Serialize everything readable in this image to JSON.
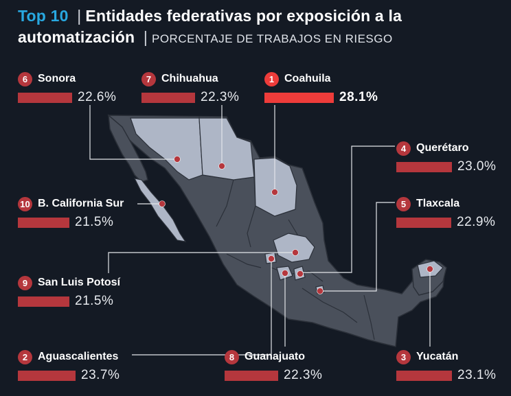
{
  "header": {
    "top_label": "Top 10",
    "separator": "|",
    "title": "Entidades federativas por exposición a la automatización",
    "subtitle": "PORCENTAJE DE TRABAJOS EN RIESGO"
  },
  "colors": {
    "accent_blue": "#28a8e0",
    "bar_red": "#b5373d",
    "highlight_red": "#ee3c3a",
    "background": "#141a24",
    "map_dark": "#4a505b",
    "map_highlight": "#aeb6c6"
  },
  "chart_data": {
    "type": "bar",
    "title": "Entidades federativas por exposición a la automatización",
    "subtitle": "PORCENTAJE DE TRABAJOS EN RIESGO",
    "unit": "%",
    "entries": [
      {
        "rank": "1",
        "name": "Coahuila",
        "value": 28.1,
        "label": "28.1%"
      },
      {
        "rank": "2",
        "name": "Aguascalientes",
        "value": 23.7,
        "label": "23.7%"
      },
      {
        "rank": "3",
        "name": "Yucatán",
        "value": 23.1,
        "label": "23.1%"
      },
      {
        "rank": "4",
        "name": "Querétaro",
        "value": 23.0,
        "label": "23.0%"
      },
      {
        "rank": "5",
        "name": "Tlaxcala",
        "value": 22.9,
        "label": "22.9%"
      },
      {
        "rank": "6",
        "name": "Sonora",
        "value": 22.6,
        "label": "22.6%"
      },
      {
        "rank": "7",
        "name": "Chihuahua",
        "value": 22.3,
        "label": "22.3%"
      },
      {
        "rank": "8",
        "name": "Guanajuato",
        "value": 22.3,
        "label": "22.3%"
      },
      {
        "rank": "9",
        "name": "San Luis Potosí",
        "value": 21.5,
        "label": "21.5%"
      },
      {
        "rank": "10",
        "name": "B. California Sur",
        "value": 21.5,
        "label": "21.5%"
      }
    ]
  }
}
